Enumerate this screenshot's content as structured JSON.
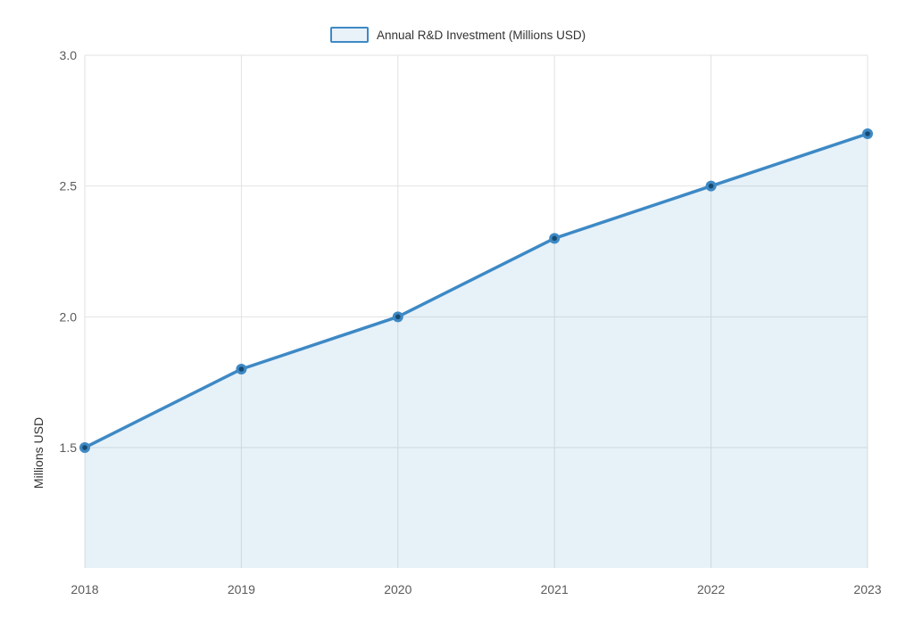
{
  "legend": {
    "label": "Annual R&D Investment (Millions USD)"
  },
  "chart_data": {
    "type": "area",
    "title": "",
    "series_name": "Annual R&D Investment (Millions USD)",
    "categories": [
      "2018",
      "2019",
      "2020",
      "2021",
      "2022",
      "2023"
    ],
    "values": [
      1.5,
      1.8,
      2.0,
      2.3,
      2.5,
      2.7
    ],
    "xlabel": "",
    "ylabel": "Millions USD",
    "yticks": [
      3.0,
      2.5,
      2.0,
      1.5
    ],
    "ylim": [
      1.0,
      3.0
    ],
    "grid": true,
    "legend_position": "top-center",
    "markers": true,
    "colors": {
      "line": "#3d89c5",
      "marker_core": "#174a70",
      "area_fill": "rgba(61,137,197,0.12)",
      "gridline": "#e2e2e2",
      "tick_text": "#5a5a5a",
      "label_text": "#333333",
      "legend_swatch_fill": "#e9f1f9"
    }
  }
}
